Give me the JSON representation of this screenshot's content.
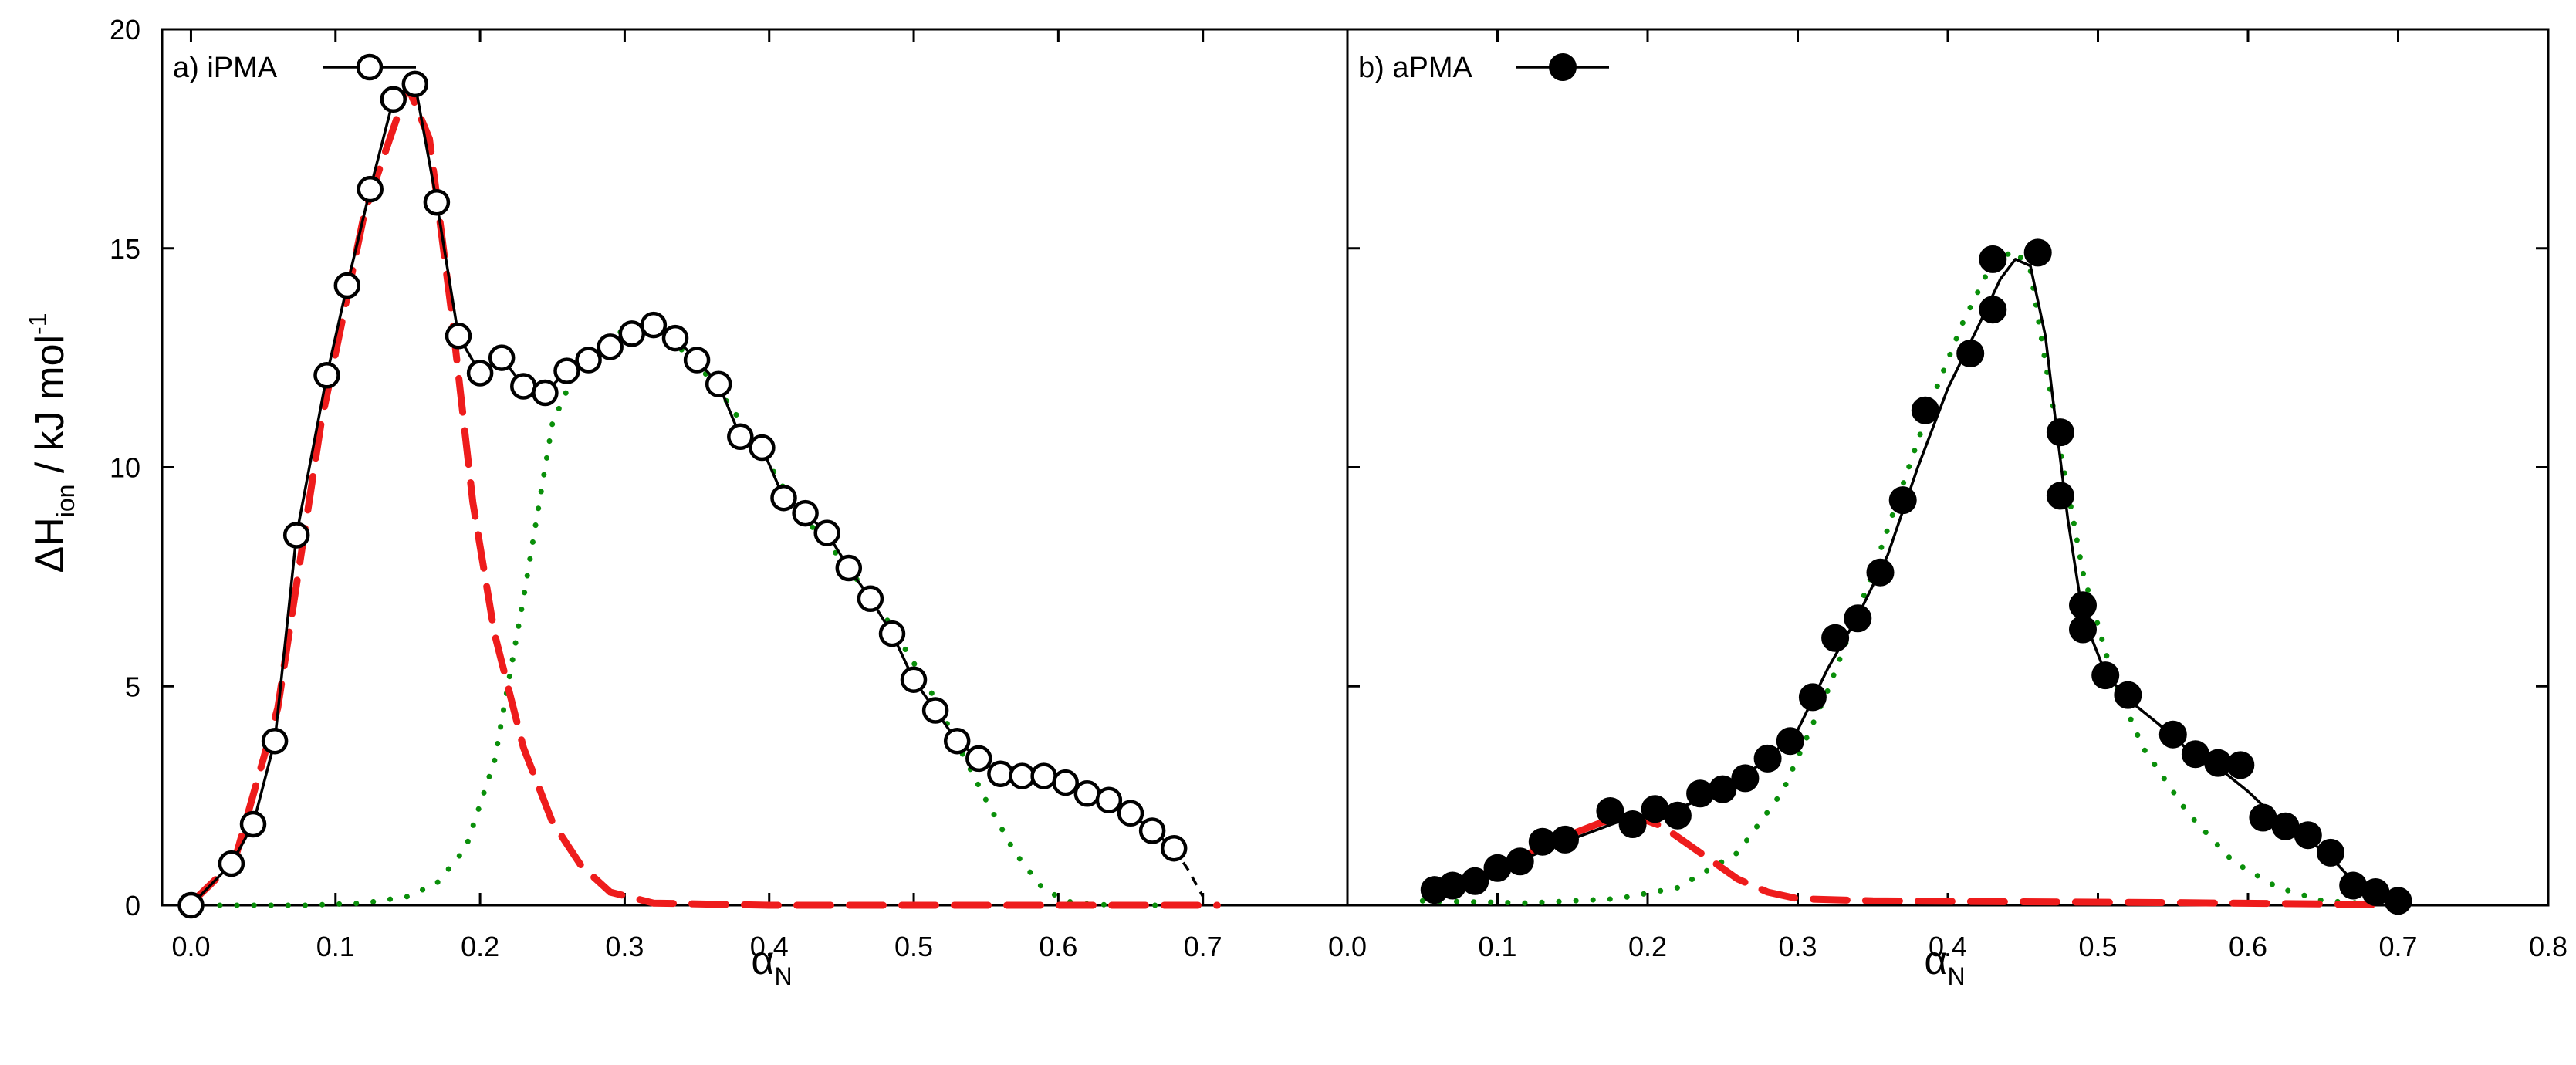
{
  "chart_data": {
    "type": "scatter",
    "ylabel_main": "ΔH",
    "ylabel_sub": "ion",
    "ylabel_rest": " / kJ mol",
    "ylabel_sup": "-1",
    "ylim": [
      0,
      20
    ],
    "yticks": [
      0,
      5,
      10,
      15,
      20
    ],
    "ytick_labels": [
      "0",
      "5",
      "10",
      "15",
      "20"
    ],
    "panels": [
      {
        "id": "a",
        "legend_label": "a) iPMA",
        "marker": "open-circle",
        "xlabel_main": "α",
        "xlabel_sub": "N",
        "xlim": [
          -0.02,
          0.8
        ],
        "xticks": [
          0.0,
          0.1,
          0.2,
          0.3,
          0.4,
          0.5,
          0.6,
          0.7
        ],
        "xtick_labels": [
          "0.0",
          "0.1",
          "0.2",
          "0.3",
          "0.4",
          "0.5",
          "0.6",
          "0.7"
        ],
        "points": [
          [
            0.0,
            0.0
          ],
          [
            0.028,
            0.95
          ],
          [
            0.043,
            1.85
          ],
          [
            0.058,
            3.75
          ],
          [
            0.073,
            8.45
          ],
          [
            0.094,
            12.1
          ],
          [
            0.108,
            14.15
          ],
          [
            0.124,
            16.35
          ],
          [
            0.14,
            18.4
          ],
          [
            0.155,
            18.75
          ],
          [
            0.17,
            16.05
          ],
          [
            0.185,
            13.0
          ],
          [
            0.2,
            12.15
          ],
          [
            0.215,
            12.5
          ],
          [
            0.23,
            11.85
          ],
          [
            0.245,
            11.7
          ],
          [
            0.26,
            12.2
          ],
          [
            0.275,
            12.45
          ],
          [
            0.29,
            12.75
          ],
          [
            0.305,
            13.05
          ],
          [
            0.32,
            13.25
          ],
          [
            0.335,
            12.95
          ],
          [
            0.35,
            12.45
          ],
          [
            0.365,
            11.9
          ],
          [
            0.38,
            10.7
          ],
          [
            0.395,
            10.45
          ],
          [
            0.41,
            9.3
          ],
          [
            0.425,
            8.95
          ],
          [
            0.44,
            8.5
          ],
          [
            0.455,
            7.7
          ],
          [
            0.47,
            7.0
          ],
          [
            0.485,
            6.2
          ],
          [
            0.5,
            5.15
          ],
          [
            0.515,
            4.45
          ],
          [
            0.53,
            3.75
          ],
          [
            0.545,
            3.35
          ],
          [
            0.56,
            3.0
          ],
          [
            0.575,
            2.95
          ],
          [
            0.59,
            2.95
          ],
          [
            0.605,
            2.8
          ],
          [
            0.62,
            2.55
          ],
          [
            0.635,
            2.4
          ],
          [
            0.65,
            2.1
          ],
          [
            0.665,
            1.7
          ],
          [
            0.68,
            1.3
          ]
        ],
        "fit_line": [
          [
            0.0,
            0.0
          ],
          [
            0.028,
            0.95
          ],
          [
            0.043,
            1.85
          ],
          [
            0.058,
            3.75
          ],
          [
            0.073,
            8.45
          ],
          [
            0.094,
            12.1
          ],
          [
            0.108,
            14.15
          ],
          [
            0.124,
            16.35
          ],
          [
            0.14,
            18.4
          ],
          [
            0.155,
            18.75
          ],
          [
            0.17,
            16.05
          ],
          [
            0.185,
            13.0
          ],
          [
            0.2,
            12.15
          ],
          [
            0.215,
            12.5
          ],
          [
            0.23,
            11.85
          ],
          [
            0.245,
            11.7
          ],
          [
            0.26,
            12.2
          ],
          [
            0.275,
            12.45
          ],
          [
            0.29,
            12.75
          ],
          [
            0.305,
            13.05
          ],
          [
            0.32,
            13.25
          ],
          [
            0.335,
            12.95
          ],
          [
            0.35,
            12.45
          ],
          [
            0.365,
            11.9
          ],
          [
            0.38,
            10.7
          ],
          [
            0.395,
            10.45
          ],
          [
            0.41,
            9.3
          ],
          [
            0.425,
            8.95
          ],
          [
            0.44,
            8.5
          ],
          [
            0.455,
            7.7
          ],
          [
            0.47,
            7.0
          ],
          [
            0.485,
            6.2
          ],
          [
            0.5,
            5.15
          ],
          [
            0.515,
            4.45
          ],
          [
            0.53,
            3.75
          ],
          [
            0.545,
            3.35
          ],
          [
            0.56,
            3.0
          ],
          [
            0.575,
            2.95
          ],
          [
            0.59,
            2.95
          ],
          [
            0.605,
            2.8
          ],
          [
            0.62,
            2.55
          ],
          [
            0.635,
            2.4
          ],
          [
            0.65,
            2.1
          ],
          [
            0.665,
            1.7
          ],
          [
            0.68,
            1.3
          ]
        ],
        "fit_tail": [
          [
            0.68,
            1.3
          ],
          [
            0.69,
            0.8
          ],
          [
            0.7,
            0.2
          ]
        ],
        "red_component": [
          [
            0.0,
            0.05
          ],
          [
            0.03,
            1.0
          ],
          [
            0.06,
            4.5
          ],
          [
            0.09,
            11.0
          ],
          [
            0.12,
            15.8
          ],
          [
            0.15,
            18.7
          ],
          [
            0.165,
            17.5
          ],
          [
            0.18,
            13.6
          ],
          [
            0.195,
            9.2
          ],
          [
            0.21,
            6.2
          ],
          [
            0.23,
            3.6
          ],
          [
            0.25,
            1.9
          ],
          [
            0.27,
            0.9
          ],
          [
            0.29,
            0.3
          ],
          [
            0.32,
            0.05
          ],
          [
            0.4,
            0.0
          ],
          [
            0.5,
            0.0
          ],
          [
            0.6,
            0.0
          ],
          [
            0.71,
            0.0
          ]
        ],
        "green_component": [
          [
            0.02,
            0.0
          ],
          [
            0.08,
            0.0
          ],
          [
            0.12,
            0.05
          ],
          [
            0.15,
            0.2
          ],
          [
            0.17,
            0.5
          ],
          [
            0.19,
            1.3
          ],
          [
            0.21,
            3.3
          ],
          [
            0.23,
            7.0
          ],
          [
            0.25,
            11.0
          ],
          [
            0.27,
            12.5
          ],
          [
            0.3,
            13.15
          ],
          [
            0.33,
            13.0
          ],
          [
            0.36,
            12.0
          ],
          [
            0.39,
            10.6
          ],
          [
            0.42,
            9.0
          ],
          [
            0.45,
            7.9
          ],
          [
            0.48,
            6.6
          ],
          [
            0.51,
            5.0
          ],
          [
            0.53,
            3.7
          ],
          [
            0.55,
            2.4
          ],
          [
            0.57,
            1.2
          ],
          [
            0.59,
            0.35
          ],
          [
            0.61,
            0.05
          ],
          [
            0.64,
            0.0
          ],
          [
            0.7,
            0.0
          ]
        ]
      },
      {
        "id": "b",
        "legend_label": "b) aPMA",
        "marker": "filled-circle",
        "xlabel_main": "α",
        "xlabel_sub": "N",
        "xlim": [
          0.0,
          0.8
        ],
        "xticks": [
          0.0,
          0.1,
          0.2,
          0.3,
          0.4,
          0.5,
          0.6,
          0.7,
          0.8
        ],
        "xtick_labels": [
          "0.0",
          "0.1",
          "0.2",
          "0.3",
          "0.4",
          "0.5",
          "0.6",
          "0.7",
          "0.8"
        ],
        "points": [
          [
            0.058,
            0.35
          ],
          [
            0.07,
            0.45
          ],
          [
            0.085,
            0.55
          ],
          [
            0.1,
            0.85
          ],
          [
            0.115,
            1.0
          ],
          [
            0.13,
            1.45
          ],
          [
            0.145,
            1.5
          ],
          [
            0.175,
            2.15
          ],
          [
            0.19,
            1.85
          ],
          [
            0.205,
            2.2
          ],
          [
            0.22,
            2.05
          ],
          [
            0.235,
            2.55
          ],
          [
            0.25,
            2.65
          ],
          [
            0.265,
            2.9
          ],
          [
            0.28,
            3.35
          ],
          [
            0.295,
            3.75
          ],
          [
            0.31,
            4.75
          ],
          [
            0.325,
            6.1
          ],
          [
            0.34,
            6.55
          ],
          [
            0.355,
            7.6
          ],
          [
            0.37,
            9.25
          ],
          [
            0.385,
            11.3
          ],
          [
            0.415,
            12.6
          ],
          [
            0.43,
            13.6
          ],
          [
            0.43,
            14.75
          ],
          [
            0.46,
            14.9
          ],
          [
            0.475,
            10.8
          ],
          [
            0.475,
            9.35
          ],
          [
            0.49,
            6.85
          ],
          [
            0.49,
            6.3
          ],
          [
            0.505,
            5.25
          ],
          [
            0.52,
            4.8
          ],
          [
            0.55,
            3.9
          ],
          [
            0.565,
            3.45
          ],
          [
            0.58,
            3.25
          ],
          [
            0.595,
            3.2
          ],
          [
            0.61,
            2.0
          ],
          [
            0.625,
            1.8
          ],
          [
            0.64,
            1.6
          ],
          [
            0.655,
            1.2
          ],
          [
            0.67,
            0.45
          ],
          [
            0.685,
            0.3
          ],
          [
            0.7,
            0.1
          ]
        ],
        "fit_line": [
          [
            0.058,
            0.35
          ],
          [
            0.08,
            0.6
          ],
          [
            0.11,
            0.95
          ],
          [
            0.145,
            1.45
          ],
          [
            0.18,
            1.9
          ],
          [
            0.21,
            2.1
          ],
          [
            0.235,
            2.4
          ],
          [
            0.26,
            2.85
          ],
          [
            0.28,
            3.35
          ],
          [
            0.3,
            4.0
          ],
          [
            0.32,
            5.4
          ],
          [
            0.34,
            6.6
          ],
          [
            0.36,
            8.0
          ],
          [
            0.38,
            10.0
          ],
          [
            0.4,
            11.8
          ],
          [
            0.42,
            13.2
          ],
          [
            0.435,
            14.3
          ],
          [
            0.445,
            14.75
          ],
          [
            0.455,
            14.6
          ],
          [
            0.465,
            13.0
          ],
          [
            0.472,
            11.0
          ],
          [
            0.48,
            8.8
          ],
          [
            0.49,
            6.6
          ],
          [
            0.505,
            5.3
          ],
          [
            0.52,
            4.7
          ],
          [
            0.54,
            4.15
          ],
          [
            0.56,
            3.55
          ],
          [
            0.58,
            3.15
          ],
          [
            0.6,
            2.6
          ],
          [
            0.62,
            1.95
          ],
          [
            0.64,
            1.5
          ],
          [
            0.655,
            1.1
          ],
          [
            0.67,
            0.55
          ],
          [
            0.685,
            0.3
          ],
          [
            0.7,
            0.1
          ]
        ],
        "red_component": [
          [
            0.055,
            0.3
          ],
          [
            0.08,
            0.55
          ],
          [
            0.11,
            1.0
          ],
          [
            0.14,
            1.5
          ],
          [
            0.17,
            1.9
          ],
          [
            0.19,
            2.05
          ],
          [
            0.21,
            1.8
          ],
          [
            0.235,
            1.2
          ],
          [
            0.26,
            0.6
          ],
          [
            0.28,
            0.3
          ],
          [
            0.3,
            0.15
          ],
          [
            0.35,
            0.1
          ],
          [
            0.45,
            0.08
          ],
          [
            0.55,
            0.06
          ],
          [
            0.65,
            0.03
          ],
          [
            0.7,
            0.0
          ]
        ],
        "green_component": [
          [
            0.05,
            0.1
          ],
          [
            0.12,
            0.05
          ],
          [
            0.18,
            0.15
          ],
          [
            0.22,
            0.4
          ],
          [
            0.26,
            1.2
          ],
          [
            0.29,
            2.6
          ],
          [
            0.32,
            4.9
          ],
          [
            0.35,
            7.6
          ],
          [
            0.37,
            9.6
          ],
          [
            0.39,
            11.6
          ],
          [
            0.41,
            13.3
          ],
          [
            0.43,
            14.7
          ],
          [
            0.445,
            14.95
          ],
          [
            0.455,
            14.5
          ],
          [
            0.465,
            12.4
          ],
          [
            0.475,
            10.4
          ],
          [
            0.49,
            7.6
          ],
          [
            0.51,
            5.2
          ],
          [
            0.53,
            3.6
          ],
          [
            0.56,
            2.1
          ],
          [
            0.59,
            1.0
          ],
          [
            0.62,
            0.4
          ],
          [
            0.65,
            0.1
          ],
          [
            0.7,
            0.0
          ]
        ]
      }
    ]
  }
}
